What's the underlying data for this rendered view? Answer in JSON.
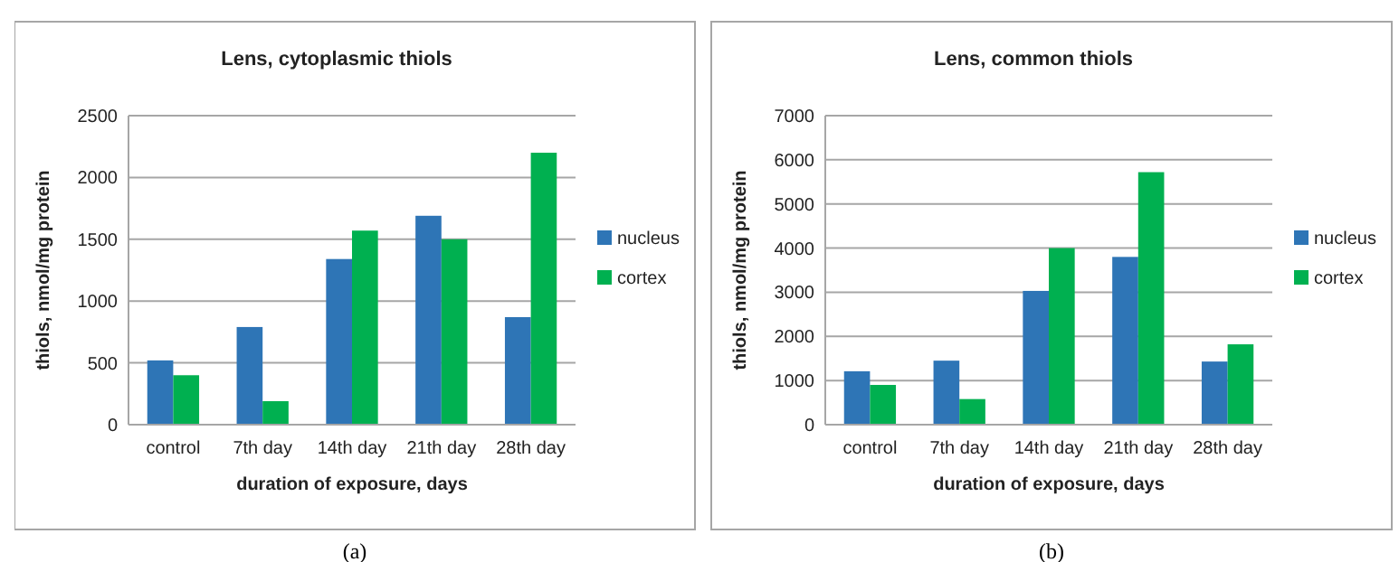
{
  "chart_data": [
    {
      "type": "bar",
      "title": "Lens, cytoplasmic thiols",
      "xlabel": "duration of exposure, days",
      "ylabel": "thiols, nmol/mg protein",
      "categories": [
        "control",
        "7th day",
        "14th day",
        "21th day",
        "28th day"
      ],
      "series": [
        {
          "name": "nucleus",
          "color": "#2e75b6",
          "values": [
            520,
            790,
            1340,
            1690,
            870
          ]
        },
        {
          "name": "cortex",
          "color": "#00b050",
          "values": [
            400,
            190,
            1570,
            1500,
            2200
          ]
        }
      ],
      "ylim": [
        0,
        2500
      ],
      "yticks": [
        0,
        500,
        1000,
        1500,
        2000,
        2500
      ],
      "grid": "y",
      "legend": "right",
      "annotations": [
        "(a)"
      ]
    },
    {
      "type": "bar",
      "title": "Lens, common thiols",
      "xlabel": "duration of exposure, days",
      "ylabel": "thiols, nmol/mg protein",
      "categories": [
        "control",
        "7th day",
        "14th day",
        "21th day",
        "28th day"
      ],
      "series": [
        {
          "name": "nucleus",
          "color": "#2e75b6",
          "values": [
            1210,
            1450,
            3030,
            3800,
            1430
          ]
        },
        {
          "name": "cortex",
          "color": "#00b050",
          "values": [
            900,
            580,
            4000,
            5720,
            1820
          ]
        }
      ],
      "ylim": [
        0,
        7000
      ],
      "yticks": [
        0,
        1000,
        2000,
        3000,
        4000,
        5000,
        6000,
        7000
      ],
      "grid": "y",
      "legend": "right",
      "annotations": [
        "(b)"
      ]
    }
  ]
}
